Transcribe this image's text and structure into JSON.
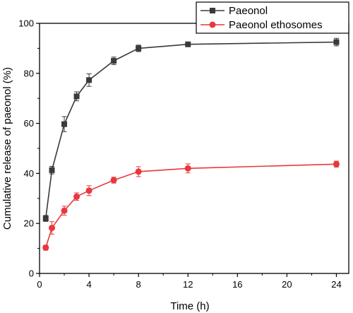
{
  "chart_data": {
    "type": "line",
    "xlabel": "Time (h)",
    "ylabel": "Cumulative release of paeonol (%)",
    "xlim": [
      0,
      25
    ],
    "ylim": [
      0,
      100
    ],
    "xticks": [
      0,
      4,
      8,
      12,
      16,
      20,
      24
    ],
    "yticks": [
      0,
      20,
      40,
      60,
      80,
      100
    ],
    "legend_position": "top-right",
    "grid": false,
    "series": [
      {
        "name": "Paeonol",
        "color": "#3a3a3a",
        "marker": "square",
        "x": [
          0.5,
          1,
          2,
          3,
          4,
          6,
          8,
          12,
          24
        ],
        "y": [
          22,
          41.3,
          59.7,
          70.8,
          77.3,
          85,
          90,
          91.6,
          92.5
        ],
        "err": [
          1.2,
          1.5,
          3,
          1.8,
          2.5,
          1.5,
          1.3,
          0.8,
          1.5
        ]
      },
      {
        "name": "Paeonol ethosomes",
        "color": "#e8383d",
        "marker": "circle",
        "x": [
          0.5,
          1,
          2,
          3,
          4,
          6,
          8,
          12,
          24
        ],
        "y": [
          10.3,
          18.2,
          25.1,
          30.7,
          33.1,
          37.3,
          40.7,
          42,
          43.7
        ],
        "err": [
          1,
          2.5,
          1.8,
          1.5,
          2,
          1.2,
          2,
          1.8,
          1.2
        ]
      }
    ]
  }
}
